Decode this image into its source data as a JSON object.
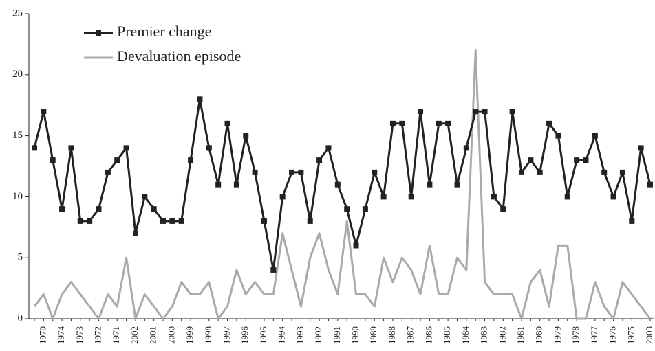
{
  "chart_data": {
    "type": "line",
    "categories": [
      null,
      "1970",
      null,
      "1974",
      null,
      "1973",
      null,
      "1972",
      null,
      "1971",
      null,
      "2002",
      null,
      "2001",
      null,
      "2000",
      null,
      "1999",
      null,
      "1998",
      null,
      "1997",
      null,
      "1996",
      null,
      "1995",
      null,
      "1994",
      null,
      "1993",
      null,
      "1992",
      null,
      "1991",
      null,
      "1990",
      null,
      "1989",
      null,
      "1988",
      null,
      "1987",
      null,
      "1986",
      null,
      "1985",
      null,
      "1984",
      null,
      "1983",
      null,
      "1982",
      null,
      "1981",
      null,
      "1980",
      null,
      "1979",
      null,
      "1978",
      null,
      "1977",
      null,
      "1976",
      null,
      "1975",
      null,
      "2003"
    ],
    "series": [
      {
        "name": "Premier change",
        "color": "#222222",
        "marker": "square",
        "values": [
          14,
          17,
          13,
          9,
          14,
          8,
          8,
          9,
          12,
          13,
          14,
          7,
          10,
          9,
          8,
          8,
          8,
          13,
          18,
          14,
          11,
          16,
          11,
          15,
          12,
          8,
          4,
          10,
          12,
          12,
          8,
          13,
          14,
          11,
          9,
          6,
          9,
          12,
          10,
          16,
          16,
          10,
          17,
          11,
          16,
          16,
          11,
          14,
          17,
          17,
          10,
          9,
          17,
          12,
          13,
          12,
          16,
          15,
          10,
          13,
          13,
          15,
          12,
          10,
          12,
          8,
          14,
          11
        ]
      },
      {
        "name": "Devaluation episode",
        "color": "#aaaaaa",
        "values": [
          1,
          2,
          0,
          2,
          3,
          2,
          1,
          0,
          2,
          1,
          5,
          0,
          2,
          1,
          0,
          1,
          3,
          2,
          2,
          3,
          0,
          1,
          4,
          2,
          3,
          2,
          2,
          7,
          4,
          1,
          5,
          7,
          4,
          2,
          8,
          2,
          2,
          1,
          5,
          3,
          5,
          4,
          2,
          6,
          2,
          2,
          5,
          4,
          22,
          3,
          2,
          2,
          2,
          0,
          3,
          4,
          1,
          6,
          6,
          0,
          0,
          3,
          1,
          0,
          3,
          2,
          1,
          0
        ]
      }
    ],
    "ylim": [
      0,
      25
    ],
    "yticks": [
      0,
      5,
      10,
      15,
      20,
      25
    ],
    "grid": false,
    "legend": "upper left"
  }
}
